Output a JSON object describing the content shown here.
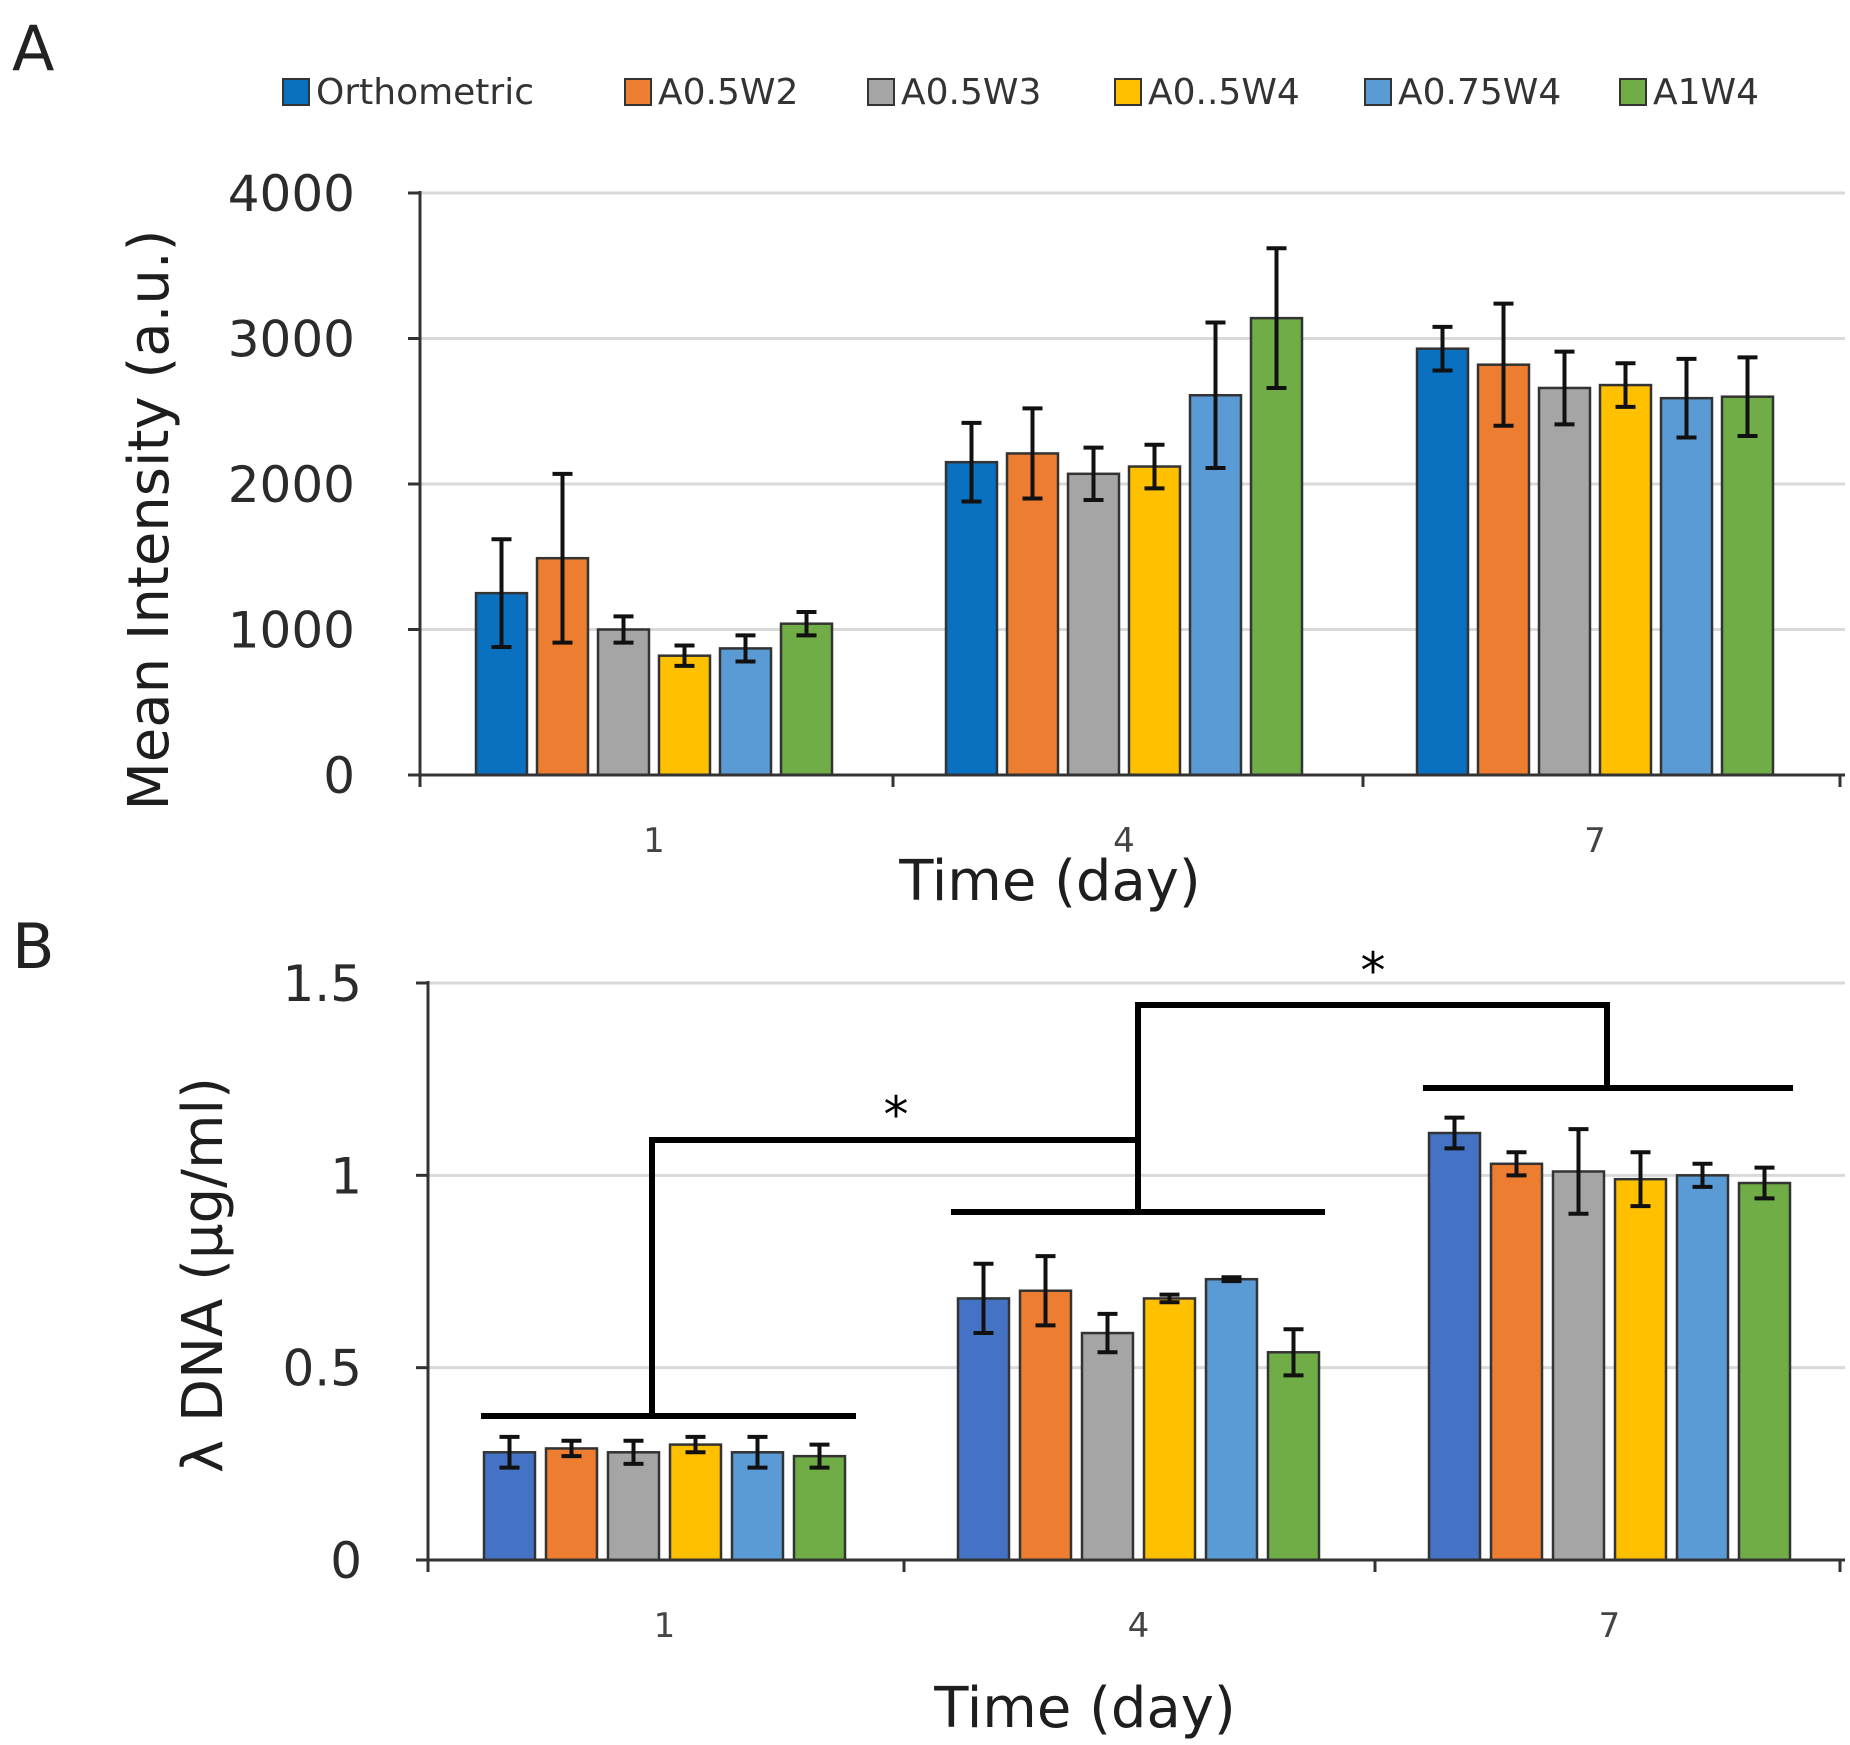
{
  "legend": {
    "entries": [
      "Orthometric",
      "A0.5W2",
      "A0.5W3",
      "A0..5W4",
      "A0.75W4",
      "A1W4"
    ],
    "colors_a": [
      "#0a70c0",
      "#ed7d31",
      "#a5a5a5",
      "#ffc000",
      "#5b9bd5",
      "#70ad47"
    ],
    "colors_b": [
      "#4472c4",
      "#ed7d31",
      "#a5a5a5",
      "#ffc000",
      "#5b9bd5",
      "#70ad47"
    ]
  },
  "chart_data": [
    {
      "panel": "A",
      "type": "bar",
      "categories": [
        "1",
        "4",
        "7"
      ],
      "xlabel": "Time (day)",
      "ylabel": "Mean Intensity (a.u.)",
      "ylim": [
        0,
        4000
      ],
      "yticks": [
        0,
        1000,
        2000,
        3000,
        4000
      ],
      "ytick_labels": [
        "0",
        "1000",
        "2000",
        "3000",
        "4000"
      ],
      "grid": true,
      "legend_position": "top",
      "series": [
        {
          "name": "Orthometric",
          "values": [
            1250,
            2150,
            2930
          ],
          "errors": [
            370,
            270,
            150
          ]
        },
        {
          "name": "A0.5W2",
          "values": [
            1490,
            2210,
            2820
          ],
          "errors": [
            580,
            310,
            420
          ]
        },
        {
          "name": "A0.5W3",
          "values": [
            1000,
            2070,
            2660
          ],
          "errors": [
            90,
            180,
            250
          ]
        },
        {
          "name": "A0..5W4",
          "values": [
            820,
            2120,
            2680
          ],
          "errors": [
            70,
            150,
            150
          ]
        },
        {
          "name": "A0.75W4",
          "values": [
            870,
            2610,
            2590
          ],
          "errors": [
            90,
            500,
            270
          ]
        },
        {
          "name": "A1W4",
          "values": [
            1040,
            3140,
            2600
          ],
          "errors": [
            80,
            480,
            270
          ]
        }
      ]
    },
    {
      "panel": "B",
      "type": "bar",
      "categories": [
        "1",
        "4",
        "7"
      ],
      "xlabel": "Time (day)",
      "ylabel": "λ DNA (µg/ml)",
      "ylim": [
        0,
        1.5
      ],
      "yticks": [
        0,
        0.5,
        1,
        1.5
      ],
      "ytick_labels": [
        "0",
        "0.5",
        "1",
        "1.5"
      ],
      "grid": true,
      "series": [
        {
          "name": "Orthometric",
          "values": [
            0.28,
            0.68,
            1.11
          ],
          "errors": [
            0.04,
            0.09,
            0.04
          ]
        },
        {
          "name": "A0.5W2",
          "values": [
            0.29,
            0.7,
            1.03
          ],
          "errors": [
            0.02,
            0.09,
            0.03
          ]
        },
        {
          "name": "A0.5W3",
          "values": [
            0.28,
            0.59,
            1.01
          ],
          "errors": [
            0.03,
            0.05,
            0.11
          ]
        },
        {
          "name": "A0..5W4",
          "values": [
            0.3,
            0.68,
            0.99
          ],
          "errors": [
            0.02,
            0.01,
            0.07
          ]
        },
        {
          "name": "A0.75W4",
          "values": [
            0.28,
            0.73,
            1.0
          ],
          "errors": [
            0.04,
            0.005,
            0.03
          ]
        },
        {
          "name": "A1W4",
          "values": [
            0.27,
            0.54,
            0.98
          ],
          "errors": [
            0.03,
            0.06,
            0.04
          ]
        }
      ],
      "annotations": [
        {
          "label": "*",
          "between": [
            "1",
            "4"
          ]
        },
        {
          "label": "*",
          "between": [
            "4",
            "7"
          ]
        }
      ]
    }
  ]
}
